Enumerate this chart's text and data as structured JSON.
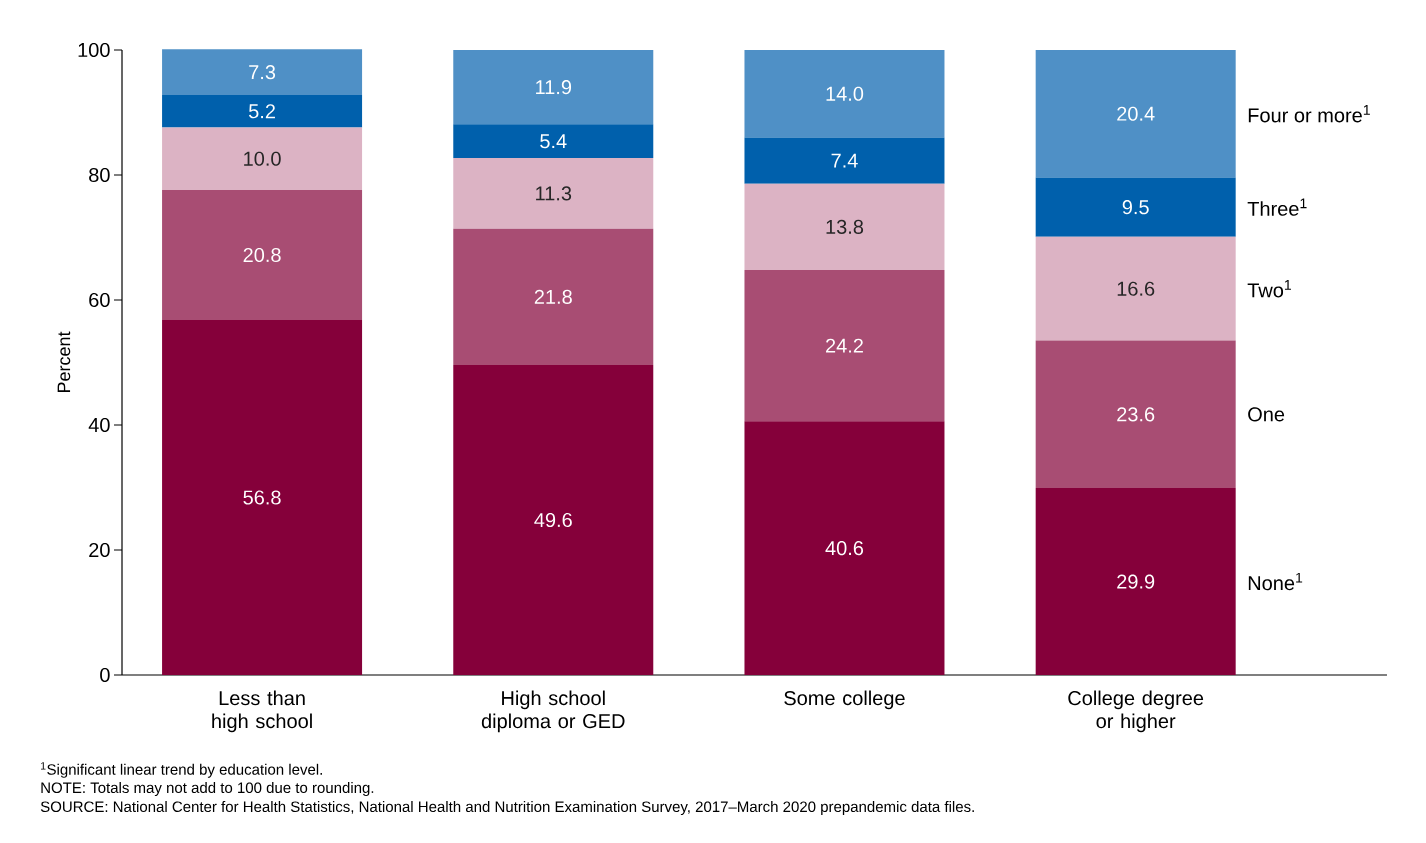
{
  "chart_data": {
    "type": "bar",
    "stacked": true,
    "ylabel": "Percent",
    "categories": [
      "Less than high school",
      "High school diploma or GED",
      "Some college",
      "College degree or higher"
    ],
    "series": [
      {
        "name": "None$^{1}$",
        "color": "#85003a",
        "values": [
          56.8,
          49.6,
          40.6,
          29.9
        ],
        "value_labels": [
          "56.8",
          "49.6",
          "40.6",
          "29.9"
        ]
      },
      {
        "name": "One",
        "color": "#a84d73",
        "values": [
          20.8,
          21.8,
          24.2,
          23.6
        ],
        "value_labels": [
          "20.8",
          "21.8",
          "24.2",
          "23.6"
        ]
      },
      {
        "name": "Two$^{1}$",
        "color": "#dcb3c4",
        "values": [
          10.0,
          11.3,
          13.8,
          16.6
        ],
        "value_labels": [
          "10.0",
          "11.3",
          "13.8",
          "16.6"
        ]
      },
      {
        "name": "Three$^{1}$",
        "color": "#0060ac",
        "values": [
          5.2,
          5.4,
          7.4,
          9.5
        ],
        "value_labels": [
          "5.2",
          "5.4",
          "7.4",
          "9.5"
        ]
      },
      {
        "name": "Four or more$^{1}$",
        "color": "#4f90c6",
        "values": [
          7.3,
          11.9,
          14.0,
          20.4
        ],
        "value_labels": [
          "7.3",
          "11.9",
          "14.0",
          "20.4"
        ]
      }
    ],
    "ylim": [
      0,
      100
    ],
    "yticks": [
      0,
      20,
      40,
      60,
      80,
      100
    ],
    "annotations": [
      "$^{1}$Significant linear trend by education level.",
      "NOTE: Totals may not add to 100 due to rounding.",
      "SOURCE: National Center for Health Statistics, National Health and Nutrition Examination Survey, 2017–March 2020 prepandemic data files."
    ]
  }
}
